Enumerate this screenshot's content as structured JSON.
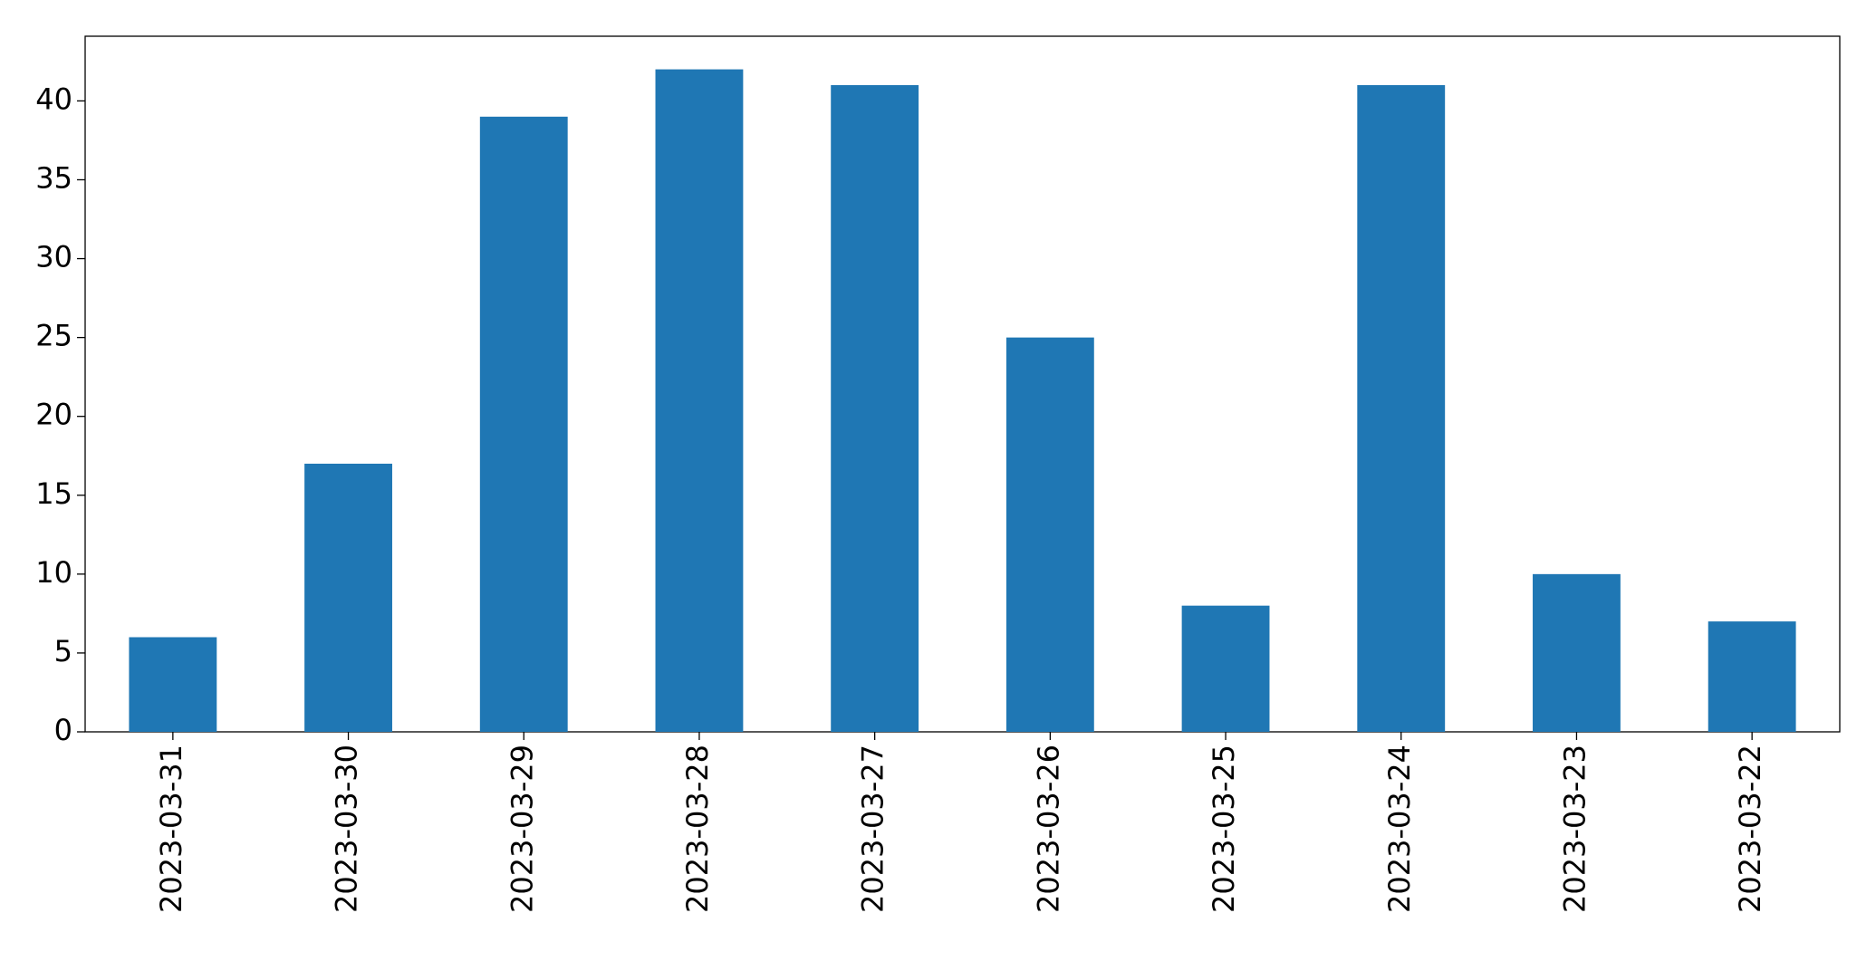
{
  "chart_data": {
    "type": "bar",
    "categories": [
      "2023-03-31",
      "2023-03-30",
      "2023-03-29",
      "2023-03-28",
      "2023-03-27",
      "2023-03-26",
      "2023-03-25",
      "2023-03-24",
      "2023-03-23",
      "2023-03-22"
    ],
    "values": [
      6,
      17,
      39,
      42,
      41,
      25,
      8,
      41,
      10,
      7
    ],
    "color": "#1f77b4",
    "ylim": [
      0,
      44.1
    ],
    "yticks": [
      0,
      5,
      10,
      15,
      20,
      25,
      30,
      35,
      40
    ],
    "grid": false
  }
}
